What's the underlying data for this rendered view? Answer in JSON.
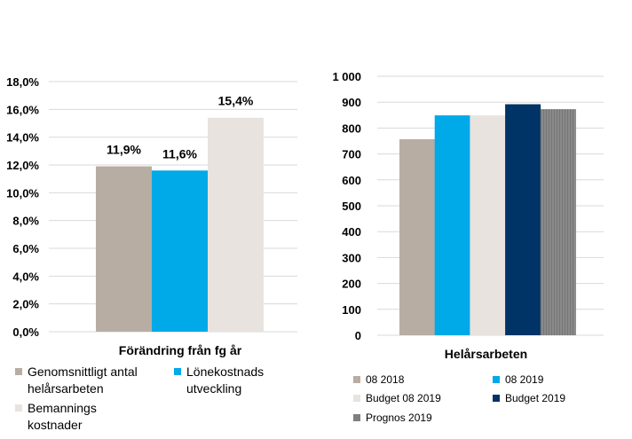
{
  "chart_data": [
    {
      "type": "bar",
      "title": "",
      "xlabel": "Förändring från fg år",
      "ylabel": "",
      "ylim": [
        0,
        18
      ],
      "yticks": [
        0,
        2,
        4,
        6,
        8,
        10,
        12,
        14,
        16,
        18
      ],
      "ytick_labels": [
        "0,0%",
        "2,0%",
        "4,0%",
        "6,0%",
        "8,0%",
        "10,0%",
        "12,0%",
        "14,0%",
        "16,0%",
        "18,0%"
      ],
      "grid": true,
      "legend_position": "bottom",
      "series": [
        {
          "name": "Genomsnittligt antal helårsarbeten",
          "value": 11.9,
          "label": "11,9%",
          "color": "#B8ADA3"
        },
        {
          "name": "Lönekostnads utveckling",
          "value": 11.6,
          "label": "11,6%",
          "color": "#00A9E8"
        },
        {
          "name": "Bemannings kostnader",
          "value": 15.4,
          "label": "15,4%",
          "color": "#E8E3DF"
        }
      ]
    },
    {
      "type": "bar",
      "title": "",
      "xlabel": "Helårsarbeten",
      "ylabel": "",
      "ylim": [
        0,
        1000
      ],
      "yticks": [
        0,
        100,
        200,
        300,
        400,
        500,
        600,
        700,
        800,
        900,
        1000
      ],
      "ytick_labels": [
        "0",
        "100",
        "200",
        "300",
        "400",
        "500",
        "600",
        "700",
        "800",
        "900",
        "1 000"
      ],
      "grid": true,
      "legend_position": "bottom",
      "series": [
        {
          "name": "08 2018",
          "value": 757,
          "color": "#B8ADA3",
          "pattern": "solid"
        },
        {
          "name": "08 2019",
          "value": 849,
          "color": "#00A9E8",
          "pattern": "solid"
        },
        {
          "name": "Budget 08 2019",
          "value": 849,
          "color": "#E8E3DF",
          "pattern": "solid"
        },
        {
          "name": "Budget 2019",
          "value": 892,
          "color": "#003366",
          "pattern": "solid"
        },
        {
          "name": "Prognos 2019",
          "value": 873,
          "color": "#7F7F7F",
          "pattern": "stripes"
        }
      ]
    }
  ]
}
